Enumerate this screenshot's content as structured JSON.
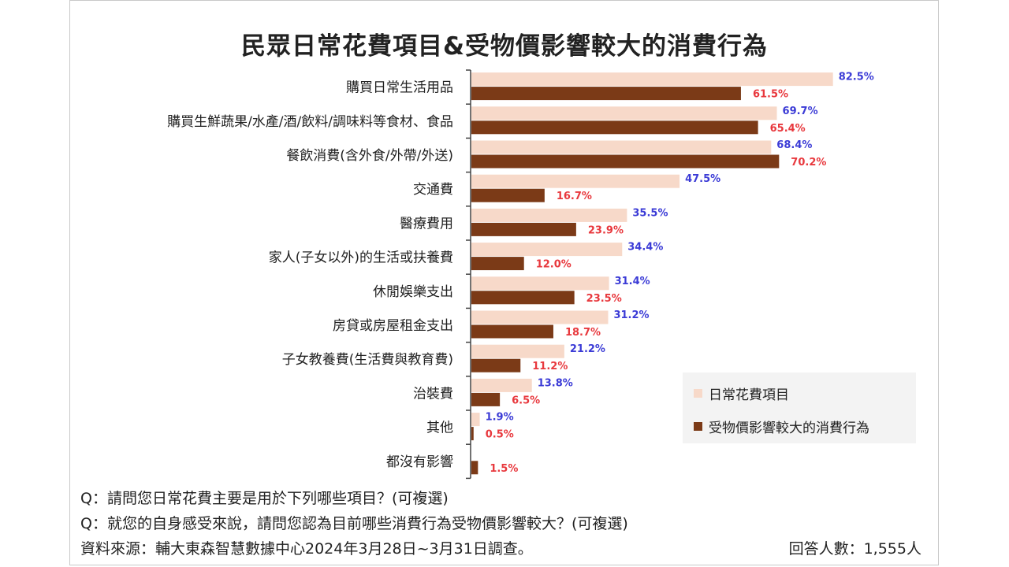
{
  "chart_data": {
    "type": "bar",
    "orientation": "horizontal",
    "title": "民眾日常花費項目&受物價影響較大的消費行為",
    "categories": [
      "購買日常生活用品",
      "購買生鮮蔬果/水產/酒/飲料/調味料等食材、食品",
      "餐飲消費(含外食/外帶/外送)",
      "交通費",
      "醫療費用",
      "家人(子女以外)的生活或扶養費",
      "休閒娛樂支出",
      "房貸或房屋租金支出",
      "子女教養費(生活費與教育費)",
      "治裝費",
      "其他",
      "都沒有影響"
    ],
    "series": [
      {
        "name": "日常花費項目",
        "color": "#f7d9c9",
        "label_color": "#3b3bd6",
        "values": [
          82.5,
          69.7,
          68.4,
          47.5,
          35.5,
          34.4,
          31.4,
          31.2,
          21.2,
          13.8,
          1.9,
          null
        ],
        "labels": [
          "82.5%",
          "69.7%",
          "68.4%",
          "47.5%",
          "35.5%",
          "34.4%",
          "31.4%",
          "31.2%",
          "21.2%",
          "13.8%",
          "1.9%",
          ""
        ]
      },
      {
        "name": "受物價影響較大的消費行為",
        "color": "#7b3a17",
        "label_color": "#e8383d",
        "values": [
          61.5,
          65.4,
          70.2,
          16.7,
          23.9,
          12.0,
          23.5,
          18.7,
          11.2,
          6.5,
          0.5,
          1.5
        ],
        "labels": [
          "61.5%",
          "65.4%",
          "70.2%",
          "16.7%",
          "23.9%",
          "12.0%",
          "23.5%",
          "18.7%",
          "11.2%",
          "6.5%",
          "0.5%",
          "1.5%"
        ]
      }
    ],
    "xlim": [
      0,
      85
    ],
    "grid": false,
    "legend_position": "bottom-right"
  },
  "footer": {
    "q1": "Q：請問您日常花費主要是用於下列哪些項目？(可複選)",
    "q2": "Q：就您的自身感受來說，請問您認為目前哪些消費行為受物價影響較大？(可複選)",
    "source": "資料來源：輔大東森智慧數據中心2024年3月28日~3月31日調查。",
    "respondents": "回答人數：1,555人"
  }
}
